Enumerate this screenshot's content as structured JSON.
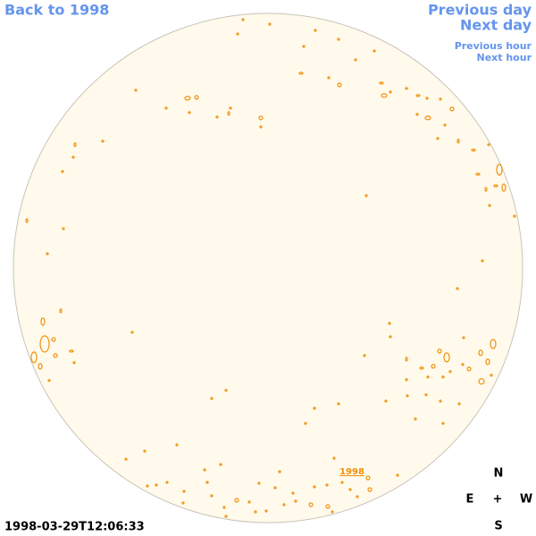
{
  "nav": {
    "back": "Back to 1998",
    "previous_day": "Previous day",
    "next_day": "Next day",
    "previous_hour": "Previous hour",
    "next_hour": "Next hour"
  },
  "image": {
    "year_link": "1998",
    "timestamp": "1998-03-29T12:06:33"
  },
  "compass": {
    "north": "N",
    "east": "E",
    "center": "+",
    "west": "W",
    "south": "S"
  }
}
